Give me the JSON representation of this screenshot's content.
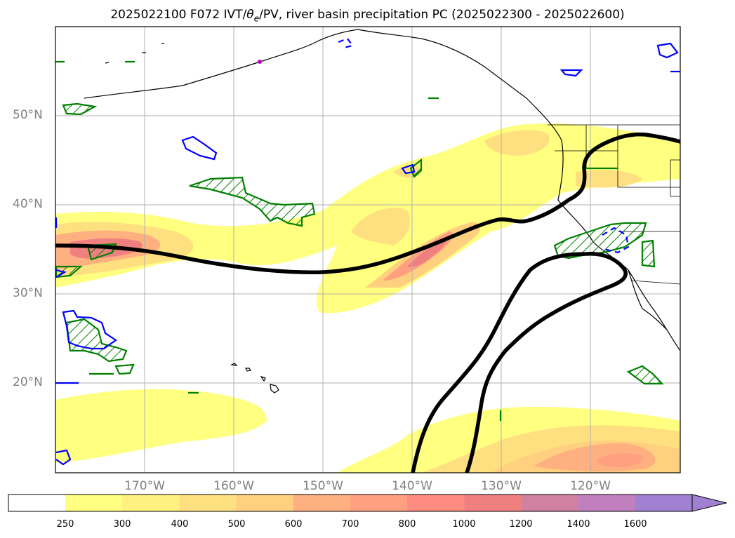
{
  "title": {
    "prefix": "2025022100 F072 IVT/",
    "theta": "θ",
    "theta_sub": "e",
    "suffix": "/PV, river basin precipitation PC (2025022300 - 2025022600)"
  },
  "map": {
    "lat_labels": [
      "50°N",
      "40°N",
      "30°N",
      "20°N"
    ],
    "lat_values": [
      50,
      40,
      30,
      20
    ],
    "lon_labels": [
      "170°W",
      "160°W",
      "150°W",
      "140°W",
      "130°W",
      "120°W"
    ],
    "lon_values": [
      -170,
      -160,
      -150,
      -140,
      -130,
      -120
    ],
    "extent": {
      "lon_min": -180,
      "lon_max": -110,
      "lat_min": 10,
      "lat_max": 60
    }
  },
  "colorbar": {
    "levels": [
      "250",
      "300",
      "400",
      "500",
      "600",
      "700",
      "800",
      "1000",
      "1200",
      "1400",
      "1600"
    ],
    "colors": [
      "#ffff80",
      "#fff080",
      "#ffe080",
      "#ffd080",
      "#ffb080",
      "#ffa080",
      "#ff8c80",
      "#f08080",
      "#d080a0",
      "#c080c0",
      "#a080d0"
    ],
    "extend": "max"
  },
  "colors": {
    "pv_contour": "#000000",
    "theta_warm": "#008000",
    "theta_cold": "#0000ff",
    "grid": "#b0b0b0",
    "coast": "#000000"
  }
}
